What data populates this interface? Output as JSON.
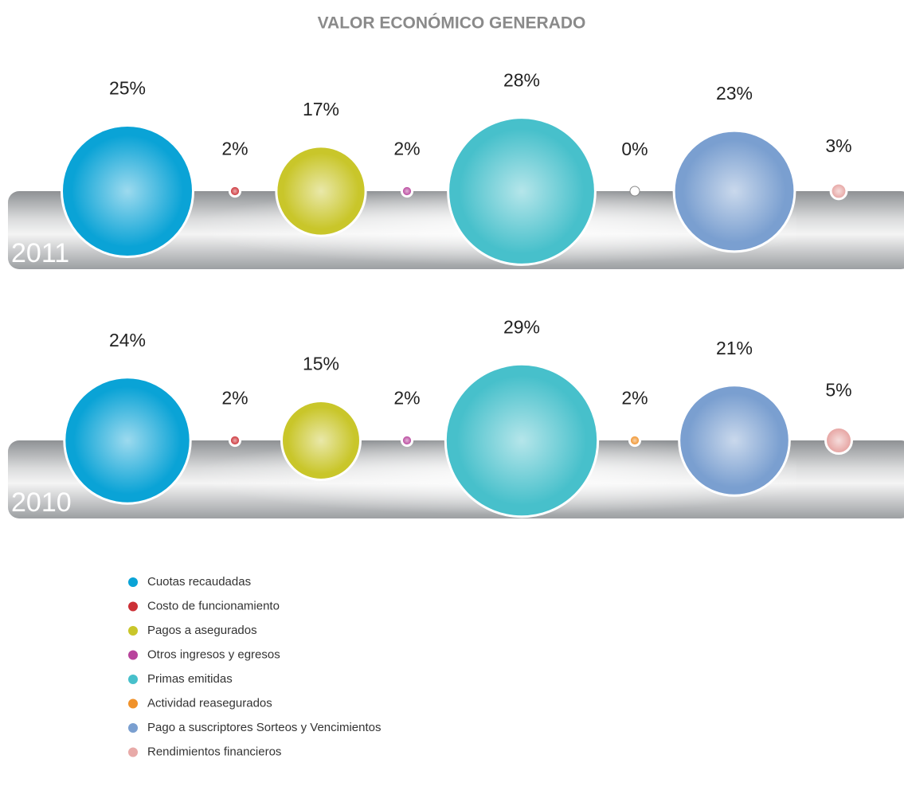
{
  "chart_data": {
    "type": "bubble",
    "title": "VALOR ECONÓMICO GENERADO",
    "categories": [
      "Cuotas recaudadas",
      "Costo de funcionamiento",
      "Pagos a asegurados",
      "Otros ingresos y egresos",
      "Primas emitidas",
      "Actividad reasegurados",
      "Pago a suscriptores Sorteos y Vencimientos",
      "Rendimientos financieros"
    ],
    "colors": [
      "#0aa3d6",
      "#cc3036",
      "#c9c62a",
      "#b8449c",
      "#47c0cb",
      "#f0922a",
      "#7a9fd0",
      "#e8aaa8"
    ],
    "series": [
      {
        "name": "2011",
        "values": [
          25,
          2,
          17,
          2,
          28,
          0,
          23,
          3
        ],
        "value_labels": [
          "25%",
          "2%",
          "17%",
          "2%",
          "28%",
          "0%",
          "23%",
          "3%"
        ]
      },
      {
        "name": "2010",
        "values": [
          24,
          2,
          15,
          2,
          29,
          2,
          21,
          5
        ],
        "value_labels": [
          "24%",
          "2%",
          "15%",
          "2%",
          "29%",
          "2%",
          "21%",
          "5%"
        ]
      }
    ]
  }
}
